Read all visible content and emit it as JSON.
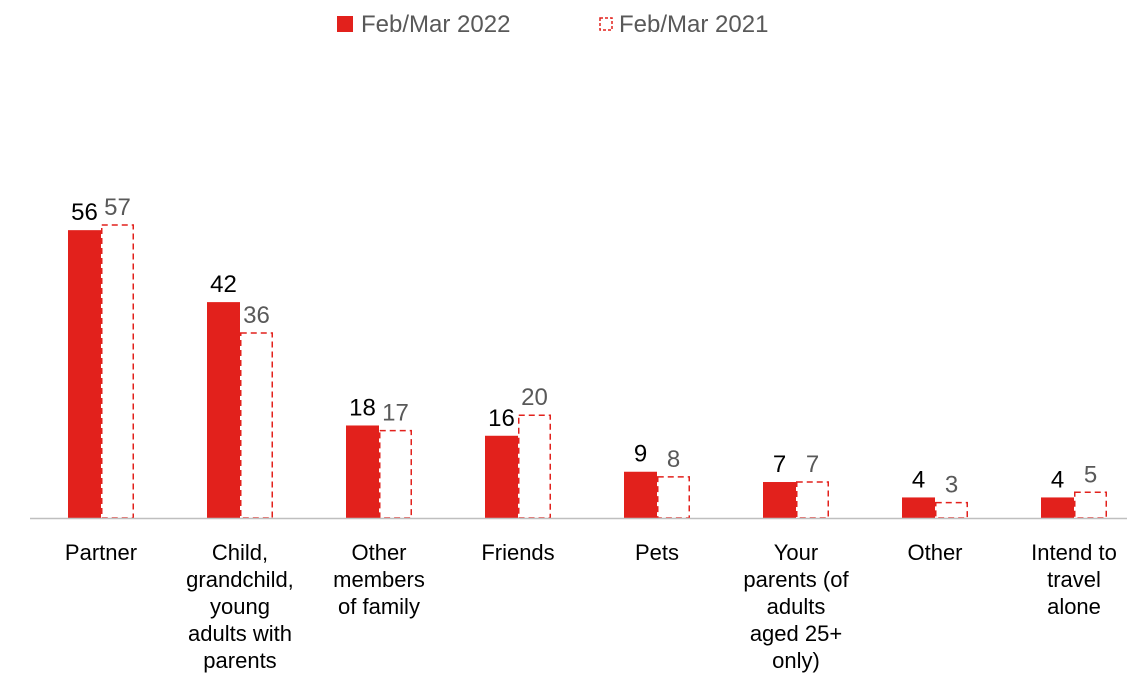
{
  "chart_data": {
    "type": "bar",
    "title": "",
    "xlabel": "",
    "ylabel": "",
    "ylim": [
      0,
      60
    ],
    "grid": false,
    "legend_position": "top-center",
    "categories": [
      "Partner",
      "Child, grandchild, young adults with parents",
      "Other members of family",
      "Friends",
      "Pets",
      "Your parents (of adults aged 25+ only)",
      "Other",
      "Intend to travel alone"
    ],
    "category_label_lines": [
      [
        "Partner"
      ],
      [
        "Child,",
        "grandchild,",
        "young",
        "adults with",
        "parents"
      ],
      [
        "Other",
        "members",
        "of family"
      ],
      [
        "Friends"
      ],
      [
        "Pets"
      ],
      [
        "Your",
        "parents (of",
        "adults",
        "aged 25+",
        "only)"
      ],
      [
        "Other"
      ],
      [
        "Intend to",
        "travel",
        "alone"
      ]
    ],
    "series": [
      {
        "name": "Feb/Mar 2022",
        "values": [
          56,
          42,
          18,
          16,
          9,
          7,
          4,
          4
        ],
        "color": "#e2211c",
        "style": "solid"
      },
      {
        "name": "Feb/Mar 2021",
        "values": [
          57,
          36,
          17,
          20,
          8,
          7,
          3,
          5
        ],
        "color": "#e2211c",
        "style": "dashed-outline"
      }
    ],
    "label_colors": {
      "Feb/Mar 2022": "#000000",
      "Feb/Mar 2021": "#595959"
    },
    "axis_color": "#bfbfbf"
  }
}
